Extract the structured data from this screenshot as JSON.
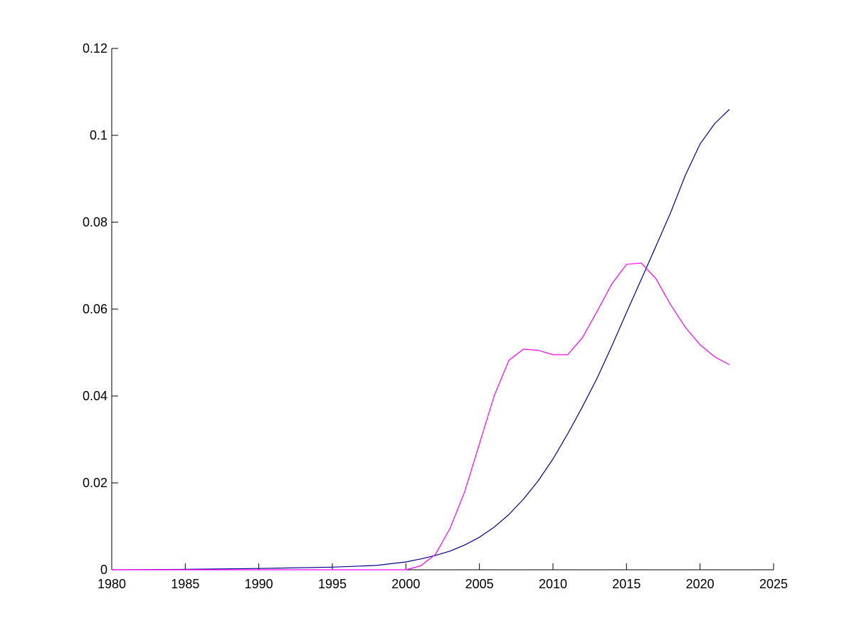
{
  "chart_data": {
    "type": "line",
    "title": "",
    "xlabel": "",
    "ylabel": "",
    "xlim": [
      1980,
      2025
    ],
    "ylim": [
      0,
      0.12
    ],
    "grid": false,
    "x_ticks": [
      1980,
      1985,
      1990,
      1995,
      2000,
      2005,
      2010,
      2015,
      2020,
      2025
    ],
    "y_ticks": [
      0,
      0.02,
      0.04,
      0.06,
      0.08,
      0.1,
      0.12
    ],
    "x_tick_labels": [
      "1980",
      "1985",
      "1990",
      "1995",
      "2000",
      "2005",
      "2010",
      "2015",
      "2020",
      "2025"
    ],
    "y_tick_labels": [
      "0",
      "0.02",
      "0.04",
      "0.06",
      "0.08",
      "0.1",
      "0.12"
    ],
    "series": [
      {
        "color": "#00008b",
        "x": [
          1980,
          1985,
          1990,
          1995,
          1998,
          2000,
          2001,
          2002,
          2003,
          2004,
          2005,
          2006,
          2007,
          2008,
          2009,
          2010,
          2011,
          2012,
          2013,
          2014,
          2015,
          2016,
          2017,
          2018,
          2019,
          2020,
          2021,
          2022
        ],
        "y": [
          0,
          0.0001,
          0.0003,
          0.0006,
          0.001,
          0.0018,
          0.0025,
          0.0033,
          0.0043,
          0.0057,
          0.0075,
          0.0098,
          0.0127,
          0.0163,
          0.0205,
          0.0255,
          0.0313,
          0.0375,
          0.0441,
          0.0515,
          0.0592,
          0.0668,
          0.0745,
          0.0822,
          0.0908,
          0.098,
          0.1027,
          0.106
        ]
      },
      {
        "color": "#ff00ff",
        "x": [
          1980,
          1999,
          2000,
          2001,
          2002,
          2003,
          2004,
          2005,
          2006,
          2007,
          2008,
          2009,
          2010,
          2011,
          2012,
          2013,
          2014,
          2015,
          2016,
          2017,
          2018,
          2019,
          2020,
          2021,
          2022
        ],
        "y": [
          0,
          0,
          0,
          0.0009,
          0.0035,
          0.0095,
          0.018,
          0.029,
          0.04,
          0.0482,
          0.0508,
          0.0505,
          0.0495,
          0.0495,
          0.0534,
          0.0595,
          0.0658,
          0.0703,
          0.0706,
          0.067,
          0.061,
          0.0558,
          0.0518,
          0.049,
          0.0472
        ]
      }
    ]
  }
}
